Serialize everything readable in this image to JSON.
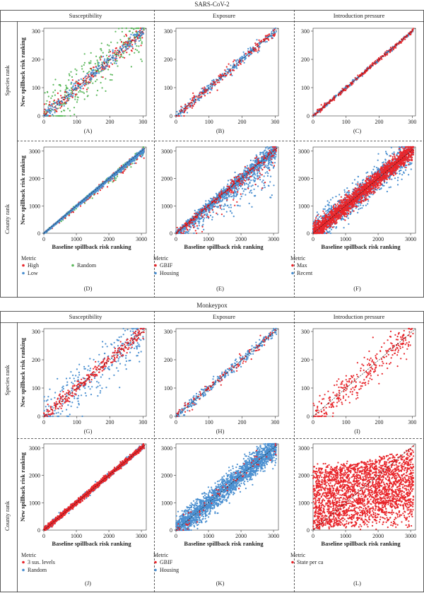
{
  "colors": {
    "red": "#e8262b",
    "blue": "#4a8fd0",
    "green": "#5cb85c",
    "diagonal": "#111111",
    "frame": "#333333",
    "panel_bg": "#ffffff"
  },
  "sections": [
    {
      "title": "SARS-CoV-2",
      "columns": [
        "Susceptibility",
        "Exposure",
        "Introduction pressure"
      ],
      "rows": [
        "Species rank",
        "County rank"
      ],
      "legends": [
        {
          "title": "Metric",
          "items": [
            {
              "label": "High",
              "color": "#e8262b"
            },
            {
              "label": "Random",
              "color": "#5cb85c"
            },
            {
              "label": "Low",
              "color": "#4a8fd0"
            }
          ]
        },
        {
          "title": "Metric",
          "items": [
            {
              "label": "GBIF",
              "color": "#e8262b"
            },
            {
              "label": "Housing",
              "color": "#4a8fd0"
            }
          ]
        },
        {
          "title": "Metric",
          "items": [
            {
              "label": "Max",
              "color": "#e8262b"
            },
            {
              "label": "Recent",
              "color": "#4a8fd0"
            }
          ]
        }
      ]
    },
    {
      "title": "Monkeypox",
      "columns": [
        "Susceptibility",
        "Exposure",
        "Introduction pressure"
      ],
      "rows": [
        "Species rank",
        "County rank"
      ],
      "legends": [
        {
          "title": "Metric",
          "items": [
            {
              "label": "3 sus. levels",
              "color": "#e8262b"
            },
            {
              "label": "Random",
              "color": "#4a8fd0"
            }
          ]
        },
        {
          "title": "Metric",
          "items": [
            {
              "label": "GBIF",
              "color": "#e8262b"
            },
            {
              "label": "Housing",
              "color": "#4a8fd0"
            }
          ]
        },
        {
          "title": "Metric",
          "items": [
            {
              "label": "State per ca",
              "color": "#e8262b"
            }
          ]
        }
      ]
    }
  ],
  "chart_data": [
    {
      "id": "A",
      "label": "(A)",
      "type": "scatter",
      "xlim": [
        0,
        310
      ],
      "ylim": [
        0,
        310
      ],
      "xticks": [
        0,
        100,
        200,
        300
      ],
      "yticks": [
        0,
        100,
        200,
        300
      ],
      "ylabel": "New spillback risk ranking",
      "xlabel": "",
      "series": [
        {
          "name": "Random",
          "color": "#5cb85c",
          "n": 300,
          "spread": 0.14
        },
        {
          "name": "High",
          "color": "#e8262b",
          "n": 220,
          "spread": 0.05
        },
        {
          "name": "Low",
          "color": "#4a8fd0",
          "n": 220,
          "spread": 0.04
        }
      ]
    },
    {
      "id": "B",
      "label": "(B)",
      "type": "scatter",
      "xlim": [
        0,
        310
      ],
      "ylim": [
        0,
        310
      ],
      "xticks": [
        0,
        100,
        200,
        300
      ],
      "yticks": [
        0,
        100,
        200,
        300
      ],
      "ylabel": "",
      "xlabel": "",
      "series": [
        {
          "name": "Housing",
          "color": "#4a8fd0",
          "n": 300,
          "spread": 0.025
        },
        {
          "name": "GBIF",
          "color": "#e8262b",
          "n": 160,
          "spread": 0.035
        }
      ]
    },
    {
      "id": "C",
      "label": "(C)",
      "type": "scatter",
      "xlim": [
        0,
        310
      ],
      "ylim": [
        0,
        310
      ],
      "xticks": [
        0,
        100,
        200,
        300
      ],
      "yticks": [
        0,
        100,
        200,
        300
      ],
      "ylabel": "",
      "xlabel": "",
      "series": [
        {
          "name": "Recent",
          "color": "#4a8fd0",
          "n": 250,
          "spread": 0.01
        },
        {
          "name": "Max",
          "color": "#e8262b",
          "n": 250,
          "spread": 0.012
        }
      ]
    },
    {
      "id": "D",
      "label": "(D)",
      "type": "scatter",
      "xlim": [
        0,
        3150
      ],
      "ylim": [
        0,
        3150
      ],
      "xticks": [
        0,
        1000,
        2000,
        3000
      ],
      "yticks": [
        0,
        1000,
        2000,
        3000
      ],
      "ylabel": "New spillback risk ranking",
      "xlabel": "Baseline spillback risk ranking",
      "series": [
        {
          "name": "Random",
          "color": "#5cb85c",
          "n": 500,
          "spread": 0.02,
          "below": 0.55
        },
        {
          "name": "High",
          "color": "#e8262b",
          "n": 250,
          "spread": 0.02,
          "below": 0.7
        },
        {
          "name": "Low",
          "color": "#4a8fd0",
          "n": 1800,
          "spread": 0.01,
          "below": 0.6
        }
      ]
    },
    {
      "id": "E",
      "label": "(E)",
      "type": "scatter",
      "xlim": [
        0,
        3150
      ],
      "ylim": [
        0,
        3150
      ],
      "xticks": [
        0,
        1000,
        2000,
        3000
      ],
      "yticks": [
        0,
        1000,
        2000,
        3000
      ],
      "ylabel": "",
      "xlabel": "Baseline spillback risk ranking",
      "series": [
        {
          "name": "Housing",
          "color": "#4a8fd0",
          "n": 2200,
          "spread": 0.08,
          "below": 0.45
        },
        {
          "name": "GBIF",
          "color": "#e8262b",
          "n": 300,
          "spread": 0.1,
          "below": 0.5
        }
      ]
    },
    {
      "id": "F",
      "label": "(F)",
      "type": "scatter",
      "xlim": [
        0,
        3150
      ],
      "ylim": [
        0,
        3150
      ],
      "xticks": [
        0,
        1000,
        2000,
        3000
      ],
      "yticks": [
        0,
        1000,
        2000,
        3000
      ],
      "ylabel": "",
      "xlabel": "Baseline spillback risk ranking",
      "series": [
        {
          "name": "Recent",
          "color": "#4a8fd0",
          "n": 1200,
          "spread": 0.08
        },
        {
          "name": "Max",
          "color": "#e8262b",
          "n": 2000,
          "spread": 0.05
        }
      ]
    },
    {
      "id": "G",
      "label": "(G)",
      "type": "scatter",
      "xlim": [
        0,
        310
      ],
      "ylim": [
        0,
        310
      ],
      "xticks": [
        0,
        100,
        200,
        300
      ],
      "yticks": [
        0,
        100,
        200,
        300
      ],
      "ylabel": "New spillback risk ranking",
      "xlabel": "",
      "series": [
        {
          "name": "Random",
          "color": "#4a8fd0",
          "n": 300,
          "spread": 0.13
        },
        {
          "name": "3 sus. levels",
          "color": "#e8262b",
          "n": 300,
          "spread": 0.04
        }
      ]
    },
    {
      "id": "H",
      "label": "(H)",
      "type": "scatter",
      "xlim": [
        0,
        310
      ],
      "ylim": [
        0,
        310
      ],
      "xticks": [
        0,
        100,
        200,
        300
      ],
      "yticks": [
        0,
        100,
        200,
        300
      ],
      "ylabel": "",
      "xlabel": "",
      "series": [
        {
          "name": "Housing",
          "color": "#4a8fd0",
          "n": 300,
          "spread": 0.03
        },
        {
          "name": "GBIF",
          "color": "#e8262b",
          "n": 100,
          "spread": 0.035
        }
      ]
    },
    {
      "id": "I",
      "label": "(I)",
      "type": "scatter",
      "xlim": [
        0,
        310
      ],
      "ylim": [
        0,
        310
      ],
      "xticks": [
        0,
        100,
        200,
        300
      ],
      "yticks": [
        0,
        100,
        200,
        300
      ],
      "ylabel": "",
      "xlabel": "",
      "series": [
        {
          "name": "State per ca",
          "color": "#e8262b",
          "n": 320,
          "spread": 0.1
        }
      ]
    },
    {
      "id": "J",
      "label": "(J)",
      "type": "scatter",
      "xlim": [
        0,
        3150
      ],
      "ylim": [
        0,
        3150
      ],
      "xticks": [
        0,
        1000,
        2000,
        3000
      ],
      "yticks": [
        0,
        1000,
        2000,
        3000
      ],
      "ylabel": "New spillback risk ranking",
      "xlabel": "Baseline spillback risk ranking",
      "series": [
        {
          "name": "Random",
          "color": "#4a8fd0",
          "n": 600,
          "spread": 0.015
        },
        {
          "name": "3 sus. levels",
          "color": "#e8262b",
          "n": 1200,
          "spread": 0.015
        }
      ]
    },
    {
      "id": "K",
      "label": "(K)",
      "type": "scatter",
      "xlim": [
        0,
        3150
      ],
      "ylim": [
        0,
        3150
      ],
      "xticks": [
        0,
        1000,
        2000,
        3000
      ],
      "yticks": [
        0,
        1000,
        2000,
        3000
      ],
      "ylabel": "",
      "xlabel": "Baseline spillback risk ranking",
      "series": [
        {
          "name": "Housing",
          "color": "#4a8fd0",
          "n": 2200,
          "spread": 0.07
        },
        {
          "name": "GBIF",
          "color": "#e8262b",
          "n": 60,
          "spread": 0.05
        }
      ]
    },
    {
      "id": "L",
      "label": "(L)",
      "type": "scatter",
      "xlim": [
        0,
        3150
      ],
      "ylim": [
        0,
        3150
      ],
      "xticks": [
        0,
        1000,
        2000,
        3000
      ],
      "yticks": [
        0,
        1000,
        2000,
        3000
      ],
      "ylabel": "",
      "xlabel": "Baseline spillback risk ranking",
      "series": [
        {
          "name": "State per ca",
          "color": "#e8262b",
          "n": 2600,
          "spread": 0.35
        }
      ]
    }
  ]
}
